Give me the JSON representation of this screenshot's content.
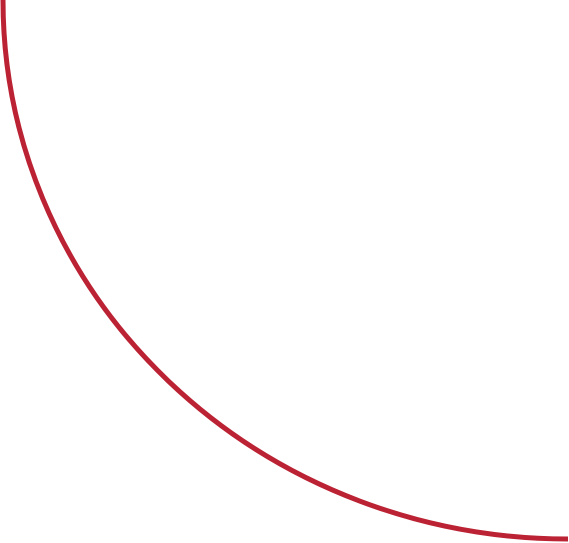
{
  "graphic": {
    "shape": "quarter-circle-arc",
    "stroke_color": "#bb2233",
    "background_color": "#ffffff"
  }
}
